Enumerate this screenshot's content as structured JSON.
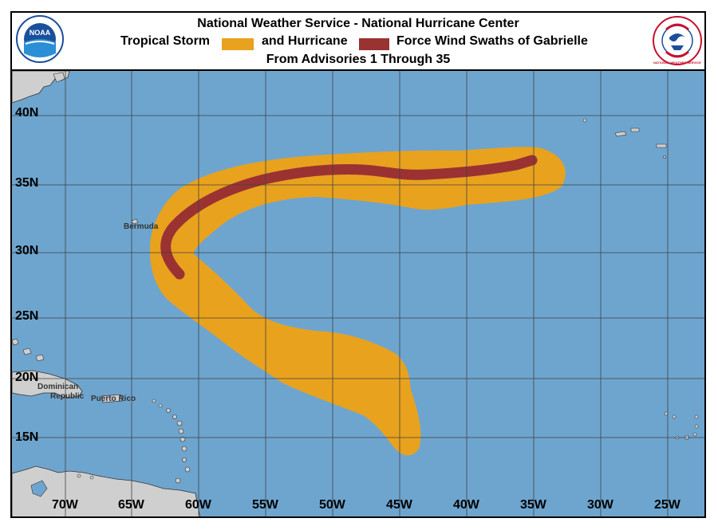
{
  "header": {
    "line1": "National Weather Service - National Hurricane Center",
    "legend_ts_label": "Tropical Storm",
    "legend_hu_label": "and Hurricane",
    "legend_tail": "Force Wind Swaths of Gabrielle",
    "line3": "From Advisories 1 Through 35",
    "noaa_logo_text": "NOAA",
    "nws_logo_text": "NATIONAL WEATHER SERVICE"
  },
  "colors": {
    "ocean": "#6ea5cf",
    "land": "#cfcfcf",
    "tropical_storm": "#e8a21e",
    "hurricane": "#9b3232",
    "grid": "#404040"
  },
  "map": {
    "lat_labels": [
      "40N",
      "35N",
      "30N",
      "25N",
      "20N",
      "15N"
    ],
    "lon_labels": [
      "70W",
      "65W",
      "60W",
      "55W",
      "50W",
      "45W",
      "40W",
      "35W",
      "30W",
      "25W"
    ],
    "places": {
      "bermuda": "Bermuda",
      "dominican_republic_1": "Dominican",
      "dominican_republic_2": "Republic",
      "puerto_rico": "Puerto Rico"
    }
  },
  "storm": {
    "name": "Gabrielle",
    "advisory_first": 1,
    "advisory_last": 35,
    "swaths": [
      "Tropical Storm Force",
      "Hurricane Force"
    ]
  }
}
